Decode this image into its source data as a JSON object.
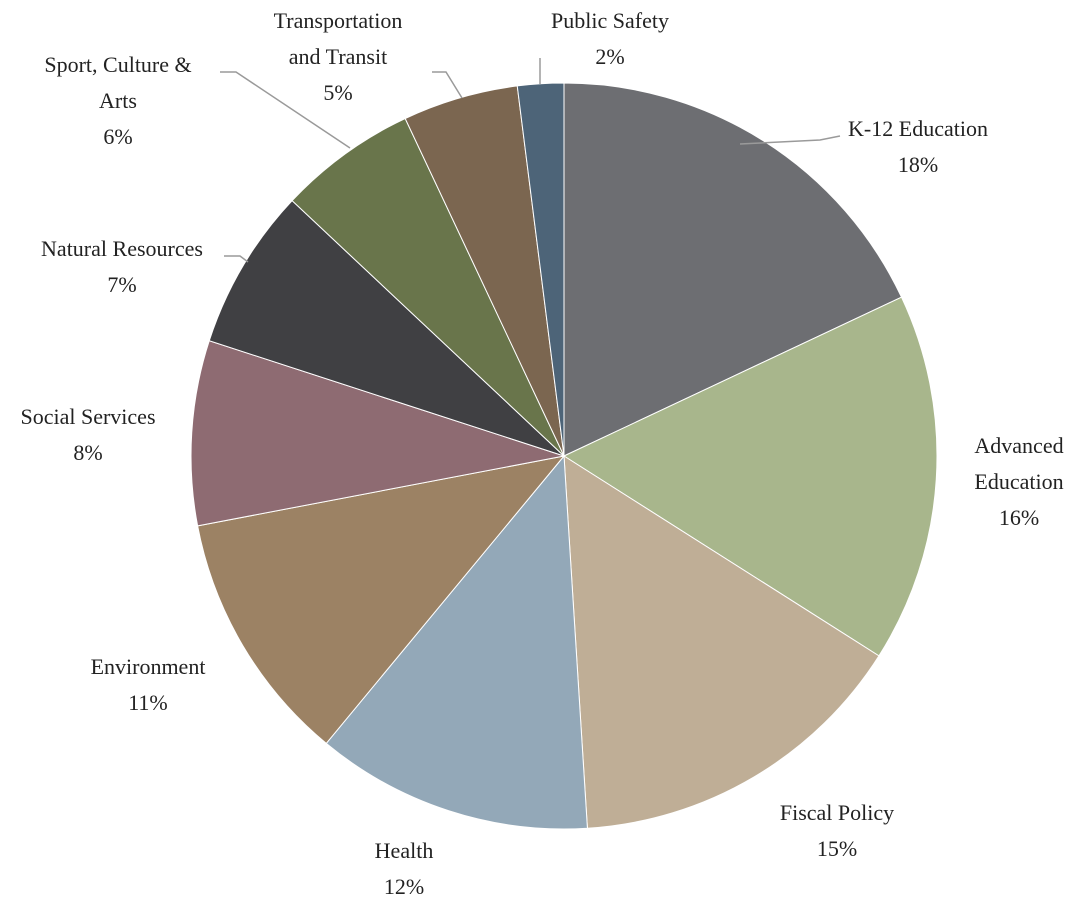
{
  "chart_data": {
    "type": "pie",
    "slices": [
      {
        "label": "K-12 Education",
        "value": 18,
        "pct_label": "18%",
        "color": "#6d6e72"
      },
      {
        "label": "Advanced Education",
        "value": 16,
        "pct_label": "16%",
        "color": "#a8b68c"
      },
      {
        "label": "Fiscal Policy",
        "value": 15,
        "pct_label": "15%",
        "color": "#bfae96"
      },
      {
        "label": "Health",
        "value": 12,
        "pct_label": "12%",
        "color": "#93a8b8"
      },
      {
        "label": "Environment",
        "value": 11,
        "pct_label": "11%",
        "color": "#9c8264"
      },
      {
        "label": "Social Services",
        "value": 8,
        "pct_label": "8%",
        "color": "#8e6b72"
      },
      {
        "label": "Natural Resources",
        "value": 7,
        "pct_label": "7%",
        "color": "#404043"
      },
      {
        "label": "Sport, Culture & Arts",
        "value": 6,
        "pct_label": "6%",
        "color": "#69754b"
      },
      {
        "label": "Transportation and Transit",
        "value": 5,
        "pct_label": "5%",
        "color": "#7b6650"
      },
      {
        "label": "Public Safety",
        "value": 2,
        "pct_label": "2%",
        "color": "#4d6478"
      }
    ],
    "labels": [
      {
        "lines": [
          "K-12 Education",
          "18%"
        ]
      },
      {
        "lines": [
          "Advanced",
          "Education",
          "16%"
        ]
      },
      {
        "lines": [
          "Fiscal Policy",
          "15%"
        ]
      },
      {
        "lines": [
          "Health",
          "12%"
        ]
      },
      {
        "lines": [
          "Environment",
          "11%"
        ]
      },
      {
        "lines": [
          "Social Services",
          "8%"
        ]
      },
      {
        "lines": [
          "Natural Resources",
          "7%"
        ]
      },
      {
        "lines": [
          "Sport, Culture &",
          "Arts",
          "6%"
        ]
      },
      {
        "lines": [
          "Transportation",
          "and Transit",
          "5%"
        ]
      },
      {
        "lines": [
          "Public Safety",
          "2%"
        ]
      }
    ]
  }
}
